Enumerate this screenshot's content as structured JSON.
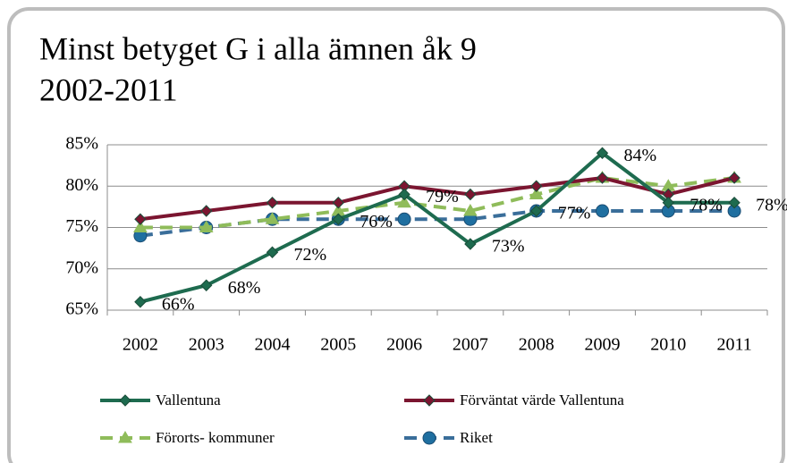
{
  "chart_data": {
    "type": "line",
    "title": [
      "Minst betyget G i alla ämnen åk 9",
      "2002-2011"
    ],
    "categories": [
      "2002",
      "2003",
      "2004",
      "2005",
      "2006",
      "2007",
      "2008",
      "2009",
      "2010",
      "2011"
    ],
    "ylim": [
      65,
      85
    ],
    "yticks": [
      {
        "value": 65,
        "label": "65%"
      },
      {
        "value": 70,
        "label": "70%"
      },
      {
        "value": 75,
        "label": "75%"
      },
      {
        "value": 80,
        "label": "80%"
      },
      {
        "value": 85,
        "label": "85%"
      }
    ],
    "grid": true,
    "series": [
      {
        "name": "Vallentuna",
        "color": "#1e6b4f",
        "marker": "diamond",
        "dashed": false,
        "values": [
          66,
          68,
          72,
          76,
          79,
          73,
          77,
          84,
          78,
          78
        ],
        "value_labels": [
          "66%",
          "68%",
          "72%",
          "76%",
          "79%",
          "73%",
          "77%",
          "84%",
          "78%",
          "78%"
        ]
      },
      {
        "name": "Förväntat värde Vallentuna",
        "color": "#7b1530",
        "marker": "diamond",
        "dashed": false,
        "values": [
          76,
          77,
          78,
          78,
          80,
          79,
          80,
          81,
          79,
          81
        ]
      },
      {
        "name": "Förorts- kommuner",
        "color": "#8fbc5a",
        "marker": "triangle",
        "dashed": true,
        "values": [
          75,
          75,
          76,
          77,
          78,
          77,
          79,
          81,
          80,
          81
        ]
      },
      {
        "name": "Riket",
        "color": "#3a6e9a",
        "marker": "circle",
        "dashed": true,
        "values": [
          74,
          75,
          76,
          76,
          76,
          76,
          77,
          77,
          77,
          77
        ]
      }
    ]
  }
}
